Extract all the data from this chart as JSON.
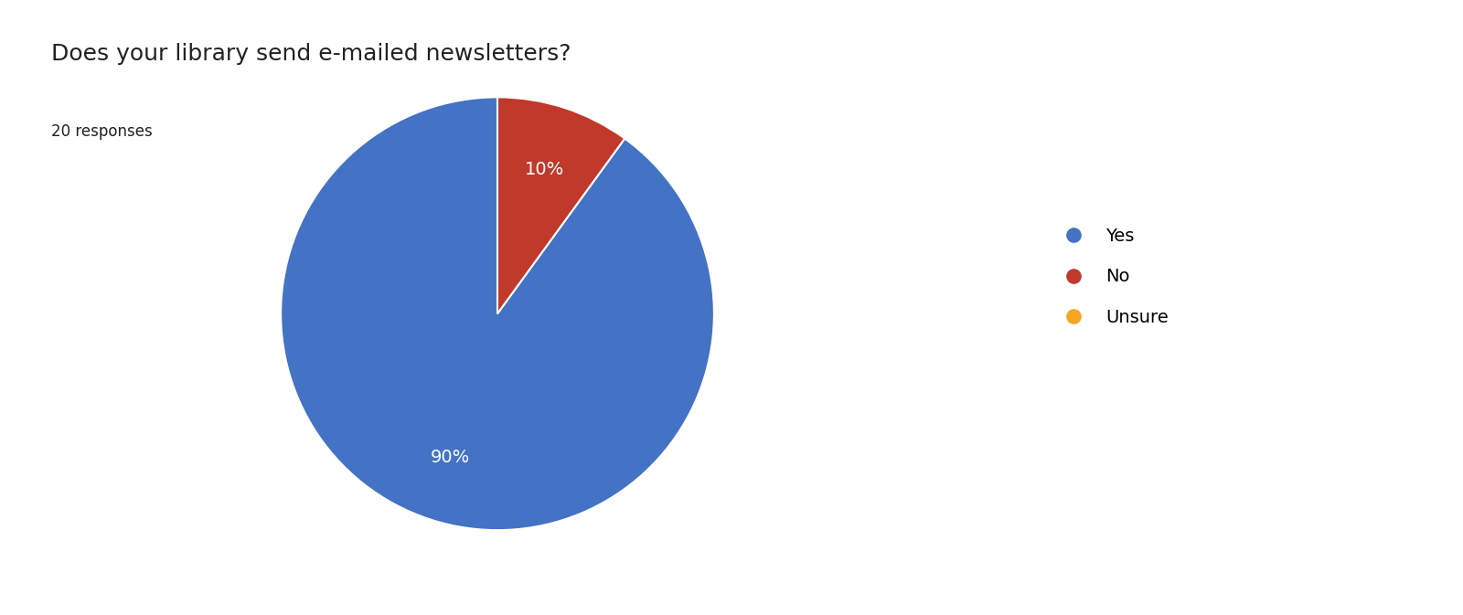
{
  "title": "Does your library send e-mailed newsletters?",
  "subtitle": "20 responses",
  "labels": [
    "Yes",
    "No",
    "Unsure"
  ],
  "values": [
    90,
    10,
    0
  ],
  "colors": [
    "#4472C4",
    "#C0392B",
    "#F5A623"
  ],
  "title_fontsize": 18,
  "subtitle_fontsize": 12,
  "autopct_fontsize": 14,
  "legend_fontsize": 14,
  "background_color": "#ffffff",
  "text_color": "#222222",
  "start_angle": 90
}
